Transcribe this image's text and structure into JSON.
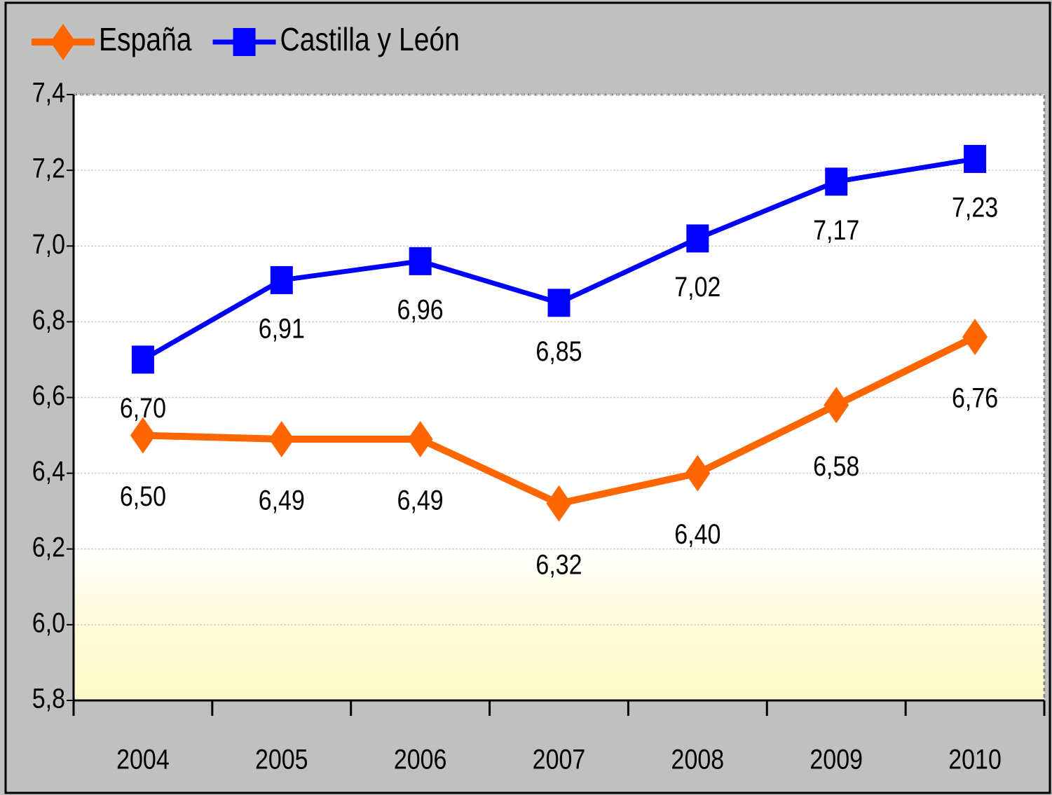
{
  "chart_data": {
    "type": "line",
    "categories": [
      "2004",
      "2005",
      "2006",
      "2007",
      "2008",
      "2009",
      "2010"
    ],
    "series": [
      {
        "name": "España",
        "color": "#ff6600",
        "marker": "diamond",
        "values": [
          6.5,
          6.49,
          6.49,
          6.32,
          6.4,
          6.58,
          6.76
        ],
        "value_labels": [
          "6,50",
          "6,49",
          "6,49",
          "6,32",
          "6,40",
          "6,58",
          "6,76"
        ]
      },
      {
        "name": "Castilla y León",
        "color": "#0000ff",
        "marker": "square",
        "values": [
          6.7,
          6.91,
          6.96,
          6.85,
          7.02,
          7.17,
          7.23
        ],
        "value_labels": [
          "6,70",
          "6,91",
          "6,96",
          "6,85",
          "7,02",
          "7,17",
          "7,23"
        ]
      }
    ],
    "ylim": [
      5.8,
      7.4
    ],
    "yticks": [
      {
        "value": 5.8,
        "label": "5,8"
      },
      {
        "value": 6.0,
        "label": "6,0"
      },
      {
        "value": 6.2,
        "label": "6,2"
      },
      {
        "value": 6.4,
        "label": "6,4"
      },
      {
        "value": 6.6,
        "label": "6,6"
      },
      {
        "value": 6.8,
        "label": "6,8"
      },
      {
        "value": 7.0,
        "label": "7,0"
      },
      {
        "value": 7.2,
        "label": "7,2"
      },
      {
        "value": 7.4,
        "label": "7,4"
      }
    ],
    "grid": true,
    "legend": "top-left"
  }
}
